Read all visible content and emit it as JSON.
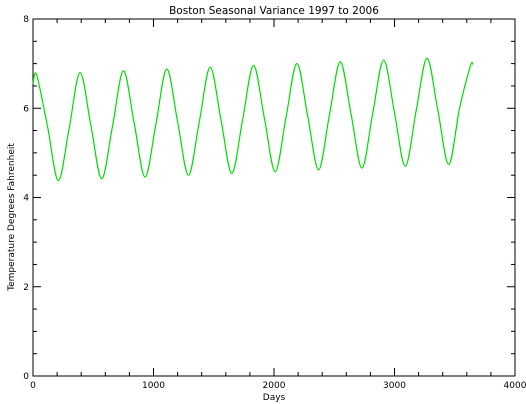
{
  "chart_data": {
    "type": "line",
    "title": "Boston Seasonal Variance 1997 to 2006",
    "xlabel": "Days",
    "ylabel": "Temperature Degrees Fahrenheit",
    "xlim": [
      0,
      4000
    ],
    "ylim": [
      0,
      8
    ],
    "x_ticks": [
      0,
      1000,
      2000,
      3000,
      4000
    ],
    "y_ticks": [
      0,
      2,
      4,
      6,
      8
    ],
    "grid": false,
    "series": [
      {
        "color": "#00dd00",
        "x": [
          0,
          30,
          120,
          210,
          300,
          390,
          480,
          570,
          660,
          750,
          840,
          930,
          1020,
          1110,
          1200,
          1290,
          1380,
          1470,
          1560,
          1650,
          1740,
          1830,
          1920,
          2010,
          2100,
          2190,
          2280,
          2370,
          2460,
          2550,
          2640,
          2730,
          2820,
          2910,
          3000,
          3090,
          3180,
          3270,
          3360,
          3450,
          3540,
          3630,
          3650
        ],
        "y": [
          6.55,
          6.75,
          5.6,
          4.38,
          5.55,
          6.8,
          5.62,
          4.42,
          5.6,
          6.84,
          5.66,
          4.46,
          5.65,
          6.88,
          5.7,
          4.5,
          5.7,
          6.92,
          5.74,
          4.54,
          5.75,
          6.96,
          5.78,
          4.58,
          5.8,
          7.0,
          5.82,
          4.62,
          5.85,
          7.04,
          5.86,
          4.66,
          5.9,
          7.08,
          5.9,
          4.7,
          5.95,
          7.12,
          5.95,
          4.74,
          6.0,
          6.95,
          6.98
        ]
      }
    ]
  }
}
